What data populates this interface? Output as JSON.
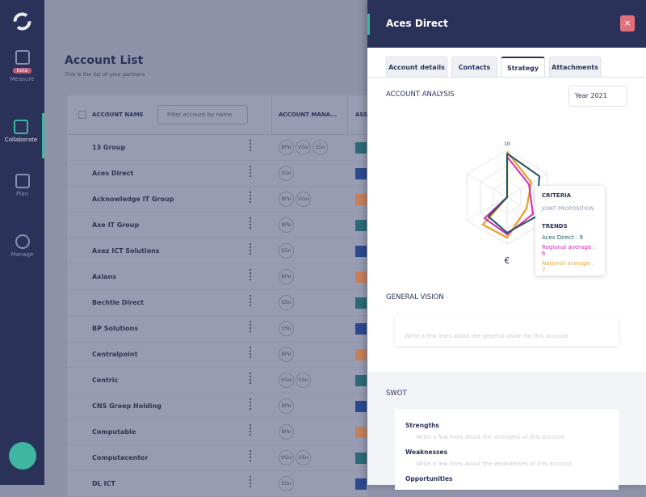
{
  "sidebar": {
    "items": [
      {
        "label": "Measure",
        "badge": "beta"
      },
      {
        "label": "Collaborate"
      },
      {
        "label": "Plan"
      },
      {
        "label": "Manage"
      }
    ]
  },
  "account_list": {
    "title": "Account List",
    "subtitle": "This is the list of your partners",
    "columns": [
      "ACCOUNT NAME",
      "ACCOUNT MANA...",
      "ASS"
    ],
    "filter_placeholder": "Filter account by name",
    "rows": [
      {
        "name": "13 Group",
        "managers": [
          "BPe",
          "VGo",
          "SSo"
        ]
      },
      {
        "name": "Aces Direct",
        "managers": [
          "SSo"
        ]
      },
      {
        "name": "Acknowledge IT Group",
        "managers": [
          "BPe",
          "VGo"
        ]
      },
      {
        "name": "Axe IT Group",
        "managers": [
          "BPe"
        ]
      },
      {
        "name": "Axez ICT Solutions",
        "managers": [
          "SSo"
        ]
      },
      {
        "name": "Axians",
        "managers": [
          "BPe"
        ]
      },
      {
        "name": "Bechtle Direct",
        "managers": [
          "SSo"
        ]
      },
      {
        "name": "BP Solutions",
        "managers": [
          "SSo"
        ]
      },
      {
        "name": "Centralpoint",
        "managers": [
          "BPe"
        ]
      },
      {
        "name": "Centric",
        "managers": [
          "VGo",
          "SSo"
        ]
      },
      {
        "name": "CNS Groep Holding",
        "managers": [
          "BPe"
        ]
      },
      {
        "name": "Computable",
        "managers": [
          "BPe"
        ]
      },
      {
        "name": "Computacenter",
        "managers": [
          "VGo",
          "SSo"
        ]
      },
      {
        "name": "DL ICT",
        "managers": [
          "SSo"
        ]
      }
    ]
  },
  "panel": {
    "title": "Aces Direct",
    "close": "×",
    "tabs": [
      "Account details",
      "Contacts",
      "Strategy",
      "Attachments"
    ],
    "analysis": {
      "title": "ACCOUNT ANALYSIS",
      "year": "Year 2021",
      "axis_max": "10",
      "tooltip": {
        "criteria_title": "CRITERIA",
        "criteria": "JOINT PROPOSITION",
        "trends_title": "TRENDS",
        "trends": [
          "Aces Direct : 9",
          "Regional average : 6",
          "National average : 7"
        ]
      }
    },
    "general_vision": {
      "title": "GENERAL VISION",
      "placeholder": "Write a few lines about the general vision for this account"
    },
    "swot": {
      "title": "SWOT",
      "items": [
        {
          "label": "Strengths",
          "placeholder": "Write a few lines about the strengths of this account"
        },
        {
          "label": "Weaknesses",
          "placeholder": "Write a few lines about the weaknesses of this account"
        },
        {
          "label": "Opportunities"
        }
      ]
    }
  }
}
